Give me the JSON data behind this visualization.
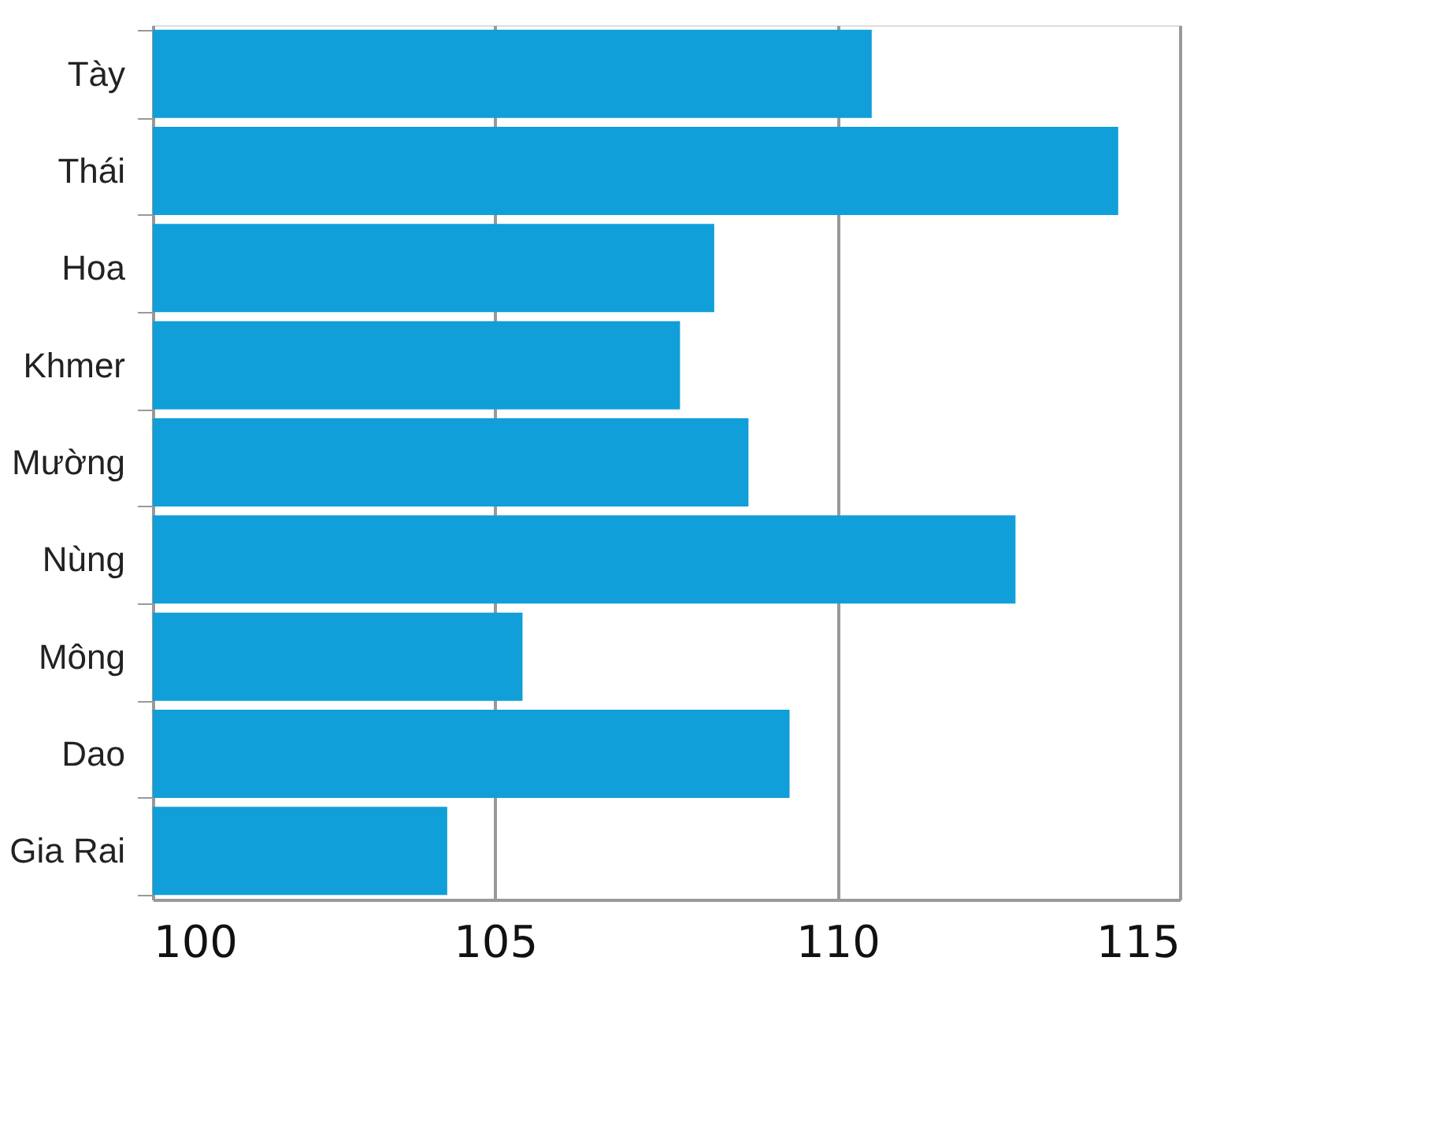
{
  "chart_data": {
    "type": "bar",
    "orientation": "horizontal",
    "categories": [
      "Tày",
      "Thái",
      "Hoa",
      "Khmer",
      "Mường",
      "Nùng",
      "Mông",
      "Dao",
      "Gia Rai"
    ],
    "values": [
      110.5,
      114.1,
      108.2,
      107.7,
      108.7,
      112.6,
      105.4,
      109.3,
      104.3
    ],
    "color": "#109fd8",
    "xlim": [
      100,
      115
    ],
    "xticks": [
      100,
      105,
      110,
      115
    ],
    "grid": "x"
  }
}
